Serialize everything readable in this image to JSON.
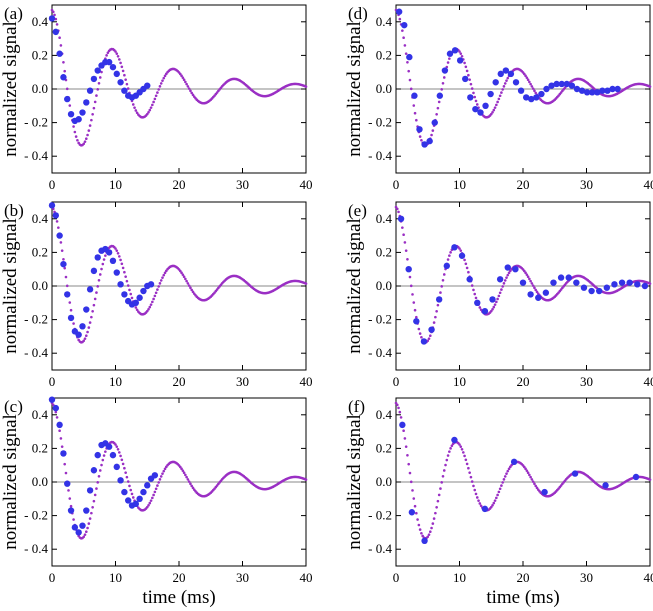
{
  "figure": {
    "ylabel": "normalized signal",
    "xlabel": "time (ms)",
    "colors": {
      "model": "#9a2fc4",
      "measured": "#3333e6",
      "zero": "#8a8a8a"
    }
  },
  "chart_data": [
    {
      "type": "scatter",
      "label": "(a)",
      "xlim": [
        0,
        40
      ],
      "ylim": [
        -0.5,
        0.5
      ],
      "xticks": [
        0,
        10,
        20,
        30,
        40
      ],
      "yticks": [
        -0.4,
        -0.2,
        0.0,
        0.2,
        0.4
      ],
      "xlabel": "",
      "ylabel": "normalized signal",
      "model": {
        "a": 0.47,
        "tau": 14.0,
        "f": 0.104
      },
      "model_visible_until": 40,
      "data": {
        "x": [
          0.0,
          0.6,
          1.2,
          1.8,
          2.4,
          3.0,
          3.6,
          4.2,
          4.8,
          5.4,
          6.0,
          6.6,
          7.2,
          7.8,
          8.4,
          9.0,
          9.6,
          10.2,
          10.8,
          11.4,
          12.0,
          12.6,
          13.2,
          13.8,
          14.4,
          15.0
        ],
        "y": [
          0.42,
          0.34,
          0.21,
          0.07,
          -0.06,
          -0.15,
          -0.19,
          -0.18,
          -0.14,
          -0.08,
          -0.01,
          0.06,
          0.11,
          0.14,
          0.16,
          0.16,
          0.13,
          0.09,
          0.04,
          -0.01,
          -0.04,
          -0.05,
          -0.04,
          -0.02,
          0.0,
          0.02
        ]
      }
    },
    {
      "type": "scatter",
      "label": "(b)",
      "xlim": [
        0,
        40
      ],
      "ylim": [
        -0.5,
        0.5
      ],
      "xticks": [
        0,
        10,
        20,
        30,
        40
      ],
      "yticks": [
        -0.4,
        -0.2,
        0.0,
        0.2,
        0.4
      ],
      "xlabel": "",
      "ylabel": "normalized signal",
      "model": {
        "a": 0.47,
        "tau": 14.0,
        "f": 0.104
      },
      "model_visible_until": 40,
      "data": {
        "x": [
          0.0,
          0.6,
          1.2,
          1.8,
          2.4,
          3.0,
          3.6,
          4.2,
          4.8,
          5.4,
          6.0,
          6.6,
          7.2,
          7.8,
          8.4,
          9.0,
          9.6,
          10.2,
          10.8,
          11.4,
          12.0,
          12.6,
          13.2,
          13.8,
          14.4,
          15.0,
          15.6
        ],
        "y": [
          0.48,
          0.42,
          0.3,
          0.13,
          -0.05,
          -0.19,
          -0.27,
          -0.29,
          -0.24,
          -0.14,
          -0.02,
          0.09,
          0.17,
          0.21,
          0.22,
          0.2,
          0.15,
          0.08,
          0.01,
          -0.05,
          -0.09,
          -0.11,
          -0.1,
          -0.07,
          -0.03,
          0.0,
          0.01
        ]
      }
    },
    {
      "type": "scatter",
      "label": "(c)",
      "xlim": [
        0,
        40
      ],
      "ylim": [
        -0.5,
        0.5
      ],
      "xticks": [
        0,
        10,
        20,
        30,
        40
      ],
      "yticks": [
        -0.4,
        -0.2,
        0.0,
        0.2,
        0.4
      ],
      "xlabel": "",
      "ylabel": "normalized signal",
      "model": {
        "a": 0.47,
        "tau": 14.0,
        "f": 0.104
      },
      "model_visible_until": 40,
      "data": {
        "x": [
          0.0,
          0.6,
          1.2,
          1.8,
          2.4,
          3.0,
          3.6,
          4.2,
          4.8,
          5.4,
          6.0,
          6.6,
          7.2,
          7.8,
          8.4,
          9.0,
          9.6,
          10.2,
          10.8,
          11.4,
          12.0,
          12.6,
          13.2,
          13.8,
          14.4,
          15.0,
          15.6,
          16.2
        ],
        "y": [
          0.49,
          0.44,
          0.34,
          0.17,
          -0.01,
          -0.17,
          -0.27,
          -0.3,
          -0.26,
          -0.17,
          -0.05,
          0.07,
          0.16,
          0.22,
          0.23,
          0.21,
          0.16,
          0.09,
          0.01,
          -0.06,
          -0.11,
          -0.14,
          -0.13,
          -0.1,
          -0.06,
          -0.02,
          0.02,
          0.04
        ]
      }
    },
    {
      "type": "scatter",
      "label": "(d)",
      "xlim": [
        0,
        40
      ],
      "ylim": [
        -0.5,
        0.5
      ],
      "xticks": [
        0,
        10,
        20,
        30,
        40
      ],
      "yticks": [
        -0.4,
        -0.2,
        0.0,
        0.2,
        0.4
      ],
      "xlabel": "",
      "ylabel": "normalized signal",
      "model": {
        "a": 0.47,
        "tau": 14.0,
        "f": 0.104
      },
      "model_visible_until": 40,
      "data": {
        "x": [
          0.5,
          1.3,
          2.1,
          2.9,
          3.7,
          4.5,
          5.3,
          6.1,
          6.9,
          7.7,
          8.5,
          9.3,
          10.1,
          10.9,
          11.7,
          12.5,
          13.3,
          14.1,
          14.9,
          15.7,
          16.5,
          17.3,
          18.1,
          18.9,
          19.7,
          20.5,
          21.3,
          22.1,
          22.9,
          23.7,
          24.5,
          25.3,
          26.1,
          26.9,
          27.7,
          28.5,
          29.3,
          30.1,
          30.9,
          31.7,
          32.5,
          33.3,
          34.1,
          34.9
        ],
        "y": [
          0.46,
          0.38,
          0.19,
          -0.04,
          -0.24,
          -0.33,
          -0.31,
          -0.2,
          -0.04,
          0.11,
          0.21,
          0.23,
          0.17,
          0.06,
          -0.05,
          -0.12,
          -0.14,
          -0.1,
          -0.03,
          0.04,
          0.09,
          0.11,
          0.09,
          0.04,
          -0.01,
          -0.05,
          -0.06,
          -0.05,
          -0.03,
          0.0,
          0.02,
          0.03,
          0.03,
          0.03,
          0.02,
          0.0,
          -0.01,
          -0.02,
          -0.02,
          -0.02,
          -0.01,
          -0.01,
          0.0,
          0.0
        ]
      }
    },
    {
      "type": "scatter",
      "label": "(e)",
      "xlim": [
        0,
        40
      ],
      "ylim": [
        -0.5,
        0.5
      ],
      "xticks": [
        0,
        10,
        20,
        30,
        40
      ],
      "yticks": [
        -0.4,
        -0.2,
        0.0,
        0.2,
        0.4
      ],
      "xlabel": "",
      "ylabel": "normalized signal",
      "model": {
        "a": 0.47,
        "tau": 14.0,
        "f": 0.104
      },
      "model_visible_until": 40,
      "data": {
        "x": [
          0.8,
          2.0,
          3.2,
          4.4,
          5.6,
          6.8,
          8.0,
          9.2,
          10.4,
          11.6,
          12.8,
          14.0,
          15.2,
          16.4,
          17.6,
          18.8,
          20.0,
          21.2,
          22.4,
          23.6,
          24.8,
          26.0,
          27.2,
          28.4,
          29.6,
          30.8,
          32.0,
          33.2,
          34.4,
          35.6,
          36.8,
          38.0,
          39.2
        ],
        "y": [
          0.4,
          0.1,
          -0.21,
          -0.33,
          -0.26,
          -0.08,
          0.12,
          0.23,
          0.18,
          0.04,
          -0.1,
          -0.15,
          -0.08,
          0.04,
          0.11,
          0.1,
          0.02,
          -0.05,
          -0.07,
          -0.04,
          0.02,
          0.05,
          0.05,
          0.02,
          -0.01,
          -0.03,
          -0.03,
          -0.01,
          0.01,
          0.02,
          0.02,
          0.01,
          0.0
        ]
      }
    },
    {
      "type": "scatter",
      "label": "(f)",
      "xlim": [
        0,
        40
      ],
      "ylim": [
        -0.5,
        0.5
      ],
      "xticks": [
        0,
        10,
        20,
        30,
        40
      ],
      "yticks": [
        -0.4,
        -0.2,
        0.0,
        0.2,
        0.4
      ],
      "xlabel": "time (ms)",
      "ylabel": "normalized signal",
      "model": {
        "a": 0.47,
        "tau": 14.0,
        "f": 0.104
      },
      "model_visible_until": 40,
      "data": {
        "x": [
          1.0,
          2.5,
          4.5,
          9.2,
          14.0,
          18.6,
          23.4,
          28.2,
          33.0,
          37.8
        ],
        "y": [
          0.34,
          -0.18,
          -0.35,
          0.25,
          -0.16,
          0.12,
          -0.06,
          0.05,
          -0.02,
          0.03
        ]
      }
    }
  ]
}
